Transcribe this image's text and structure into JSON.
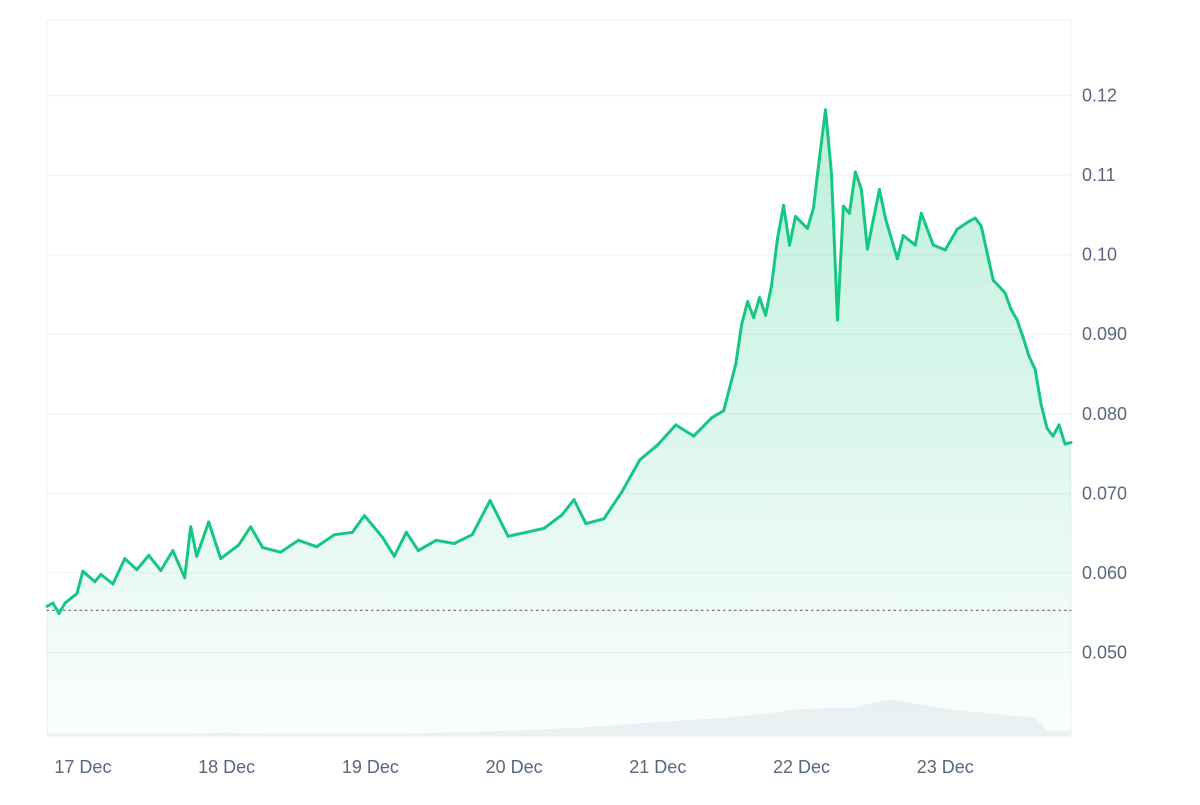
{
  "chart_data": {
    "type": "area",
    "y_tick_labels": [
      "0.12",
      "0.11",
      "0.10",
      "0.090",
      "0.080",
      "0.070",
      "0.060",
      "0.050"
    ],
    "x_tick_labels": [
      "17 Dec",
      "18 Dec",
      "19 Dec",
      "20 Dec",
      "21 Dec",
      "22 Dec",
      "23 Dec"
    ],
    "ylim": [
      0.0395,
      0.1295
    ],
    "xlim": [
      "2024-12-16 18:00",
      "2024-12-23 21:00"
    ],
    "reference_price": 0.0553,
    "colors": {
      "up": "#16c784",
      "down": "#ea3943",
      "volume": "#eff2f5",
      "grid": "#eef0f3"
    },
    "grid": true,
    "series": [
      {
        "values": [
          [
            "2024-12-16 18:00",
            0.0558
          ],
          [
            "2024-12-16 19:00",
            0.0562
          ],
          [
            "2024-12-16 20:00",
            0.0549
          ],
          [
            "2024-12-16 21:00",
            0.0562
          ],
          [
            "2024-12-16 23:00",
            0.0574
          ],
          [
            "2024-12-17 00:00",
            0.0602
          ],
          [
            "2024-12-17 02:00",
            0.0589
          ],
          [
            "2024-12-17 03:00",
            0.0598
          ],
          [
            "2024-12-17 05:00",
            0.0586
          ],
          [
            "2024-12-17 07:00",
            0.0618
          ],
          [
            "2024-12-17 09:00",
            0.0604
          ],
          [
            "2024-12-17 11:00",
            0.0622
          ],
          [
            "2024-12-17 13:00",
            0.0603
          ],
          [
            "2024-12-17 15:00",
            0.0628
          ],
          [
            "2024-12-17 17:00",
            0.0594
          ],
          [
            "2024-12-17 18:00",
            0.0658
          ],
          [
            "2024-12-17 19:00",
            0.0621
          ],
          [
            "2024-12-17 21:00",
            0.0664
          ],
          [
            "2024-12-17 23:00",
            0.0618
          ],
          [
            "2024-12-18 02:00",
            0.0635
          ],
          [
            "2024-12-18 04:00",
            0.0658
          ],
          [
            "2024-12-18 06:00",
            0.0632
          ],
          [
            "2024-12-18 09:00",
            0.0626
          ],
          [
            "2024-12-18 12:00",
            0.0641
          ],
          [
            "2024-12-18 15:00",
            0.0633
          ],
          [
            "2024-12-18 18:00",
            0.0648
          ],
          [
            "2024-12-18 21:00",
            0.0651
          ],
          [
            "2024-12-18 23:00",
            0.0672
          ],
          [
            "2024-12-19 02:00",
            0.0645
          ],
          [
            "2024-12-19 04:00",
            0.0621
          ],
          [
            "2024-12-19 06:00",
            0.0651
          ],
          [
            "2024-12-19 08:00",
            0.0628
          ],
          [
            "2024-12-19 11:00",
            0.0641
          ],
          [
            "2024-12-19 14:00",
            0.0637
          ],
          [
            "2024-12-19 17:00",
            0.0648
          ],
          [
            "2024-12-19 20:00",
            0.0691
          ],
          [
            "2024-12-19 23:00",
            0.0646
          ],
          [
            "2024-12-20 02:00",
            0.0651
          ],
          [
            "2024-12-20 05:00",
            0.0656
          ],
          [
            "2024-12-20 08:00",
            0.0673
          ],
          [
            "2024-12-20 10:00",
            0.0692
          ],
          [
            "2024-12-20 12:00",
            0.0662
          ],
          [
            "2024-12-20 15:00",
            0.0668
          ],
          [
            "2024-12-20 18:00",
            0.0702
          ],
          [
            "2024-12-20 21:00",
            0.0742
          ],
          [
            "2024-12-21 00:00",
            0.0761
          ],
          [
            "2024-12-21 03:00",
            0.0786
          ],
          [
            "2024-12-21 06:00",
            0.0772
          ],
          [
            "2024-12-21 09:00",
            0.0795
          ],
          [
            "2024-12-21 11:00",
            0.0804
          ],
          [
            "2024-12-21 13:00",
            0.0862
          ],
          [
            "2024-12-21 14:00",
            0.0912
          ],
          [
            "2024-12-21 15:00",
            0.0941
          ],
          [
            "2024-12-21 16:00",
            0.0921
          ],
          [
            "2024-12-21 17:00",
            0.0946
          ],
          [
            "2024-12-21 18:00",
            0.0924
          ],
          [
            "2024-12-21 19:00",
            0.0962
          ],
          [
            "2024-12-21 20:00",
            0.1021
          ],
          [
            "2024-12-21 21:00",
            0.1062
          ],
          [
            "2024-12-21 22:00",
            0.1012
          ],
          [
            "2024-12-21 23:00",
            0.1048
          ],
          [
            "2024-12-22 01:00",
            0.1033
          ],
          [
            "2024-12-22 02:00",
            0.1059
          ],
          [
            "2024-12-22 03:00",
            0.1122
          ],
          [
            "2024-12-22 04:00",
            0.1182
          ],
          [
            "2024-12-22 05:00",
            0.1102
          ],
          [
            "2024-12-22 06:00",
            0.0918
          ],
          [
            "2024-12-22 07:00",
            0.1061
          ],
          [
            "2024-12-22 08:00",
            0.1052
          ],
          [
            "2024-12-22 09:00",
            0.1104
          ],
          [
            "2024-12-22 10:00",
            0.1082
          ],
          [
            "2024-12-22 11:00",
            0.1007
          ],
          [
            "2024-12-22 13:00",
            0.1082
          ],
          [
            "2024-12-22 14:00",
            0.1046
          ],
          [
            "2024-12-22 16:00",
            0.0995
          ],
          [
            "2024-12-22 17:00",
            0.1024
          ],
          [
            "2024-12-22 19:00",
            0.1012
          ],
          [
            "2024-12-22 20:00",
            0.1052
          ],
          [
            "2024-12-22 22:00",
            0.1012
          ],
          [
            "2024-12-23 00:00",
            0.1006
          ],
          [
            "2024-12-23 02:00",
            0.1032
          ],
          [
            "2024-12-23 04:00",
            0.1042
          ],
          [
            "2024-12-23 05:00",
            0.1046
          ],
          [
            "2024-12-23 06:00",
            0.1036
          ],
          [
            "2024-12-23 08:00",
            0.0968
          ],
          [
            "2024-12-23 10:00",
            0.0952
          ],
          [
            "2024-12-23 11:00",
            0.0931
          ],
          [
            "2024-12-23 12:00",
            0.0918
          ],
          [
            "2024-12-23 13:00",
            0.0896
          ],
          [
            "2024-12-23 14:00",
            0.0872
          ],
          [
            "2024-12-23 15:00",
            0.0856
          ],
          [
            "2024-12-23 16:00",
            0.0812
          ],
          [
            "2024-12-23 17:00",
            0.0782
          ],
          [
            "2024-12-23 18:00",
            0.0772
          ],
          [
            "2024-12-23 19:00",
            0.0786
          ],
          [
            "2024-12-23 20:00",
            0.0762
          ],
          [
            "2024-12-23 21:00",
            0.0764
          ]
        ]
      }
    ],
    "volume": {
      "values": [
        [
          "2024-12-16 18:00",
          0.02
        ],
        [
          "2024-12-17 00:00",
          0.02
        ],
        [
          "2024-12-17 12:00",
          0.02
        ],
        [
          "2024-12-18 00:00",
          0.03
        ],
        [
          "2024-12-18 12:00",
          0.02
        ],
        [
          "2024-12-19 00:00",
          0.02
        ],
        [
          "2024-12-19 12:00",
          0.03
        ],
        [
          "2024-12-20 00:00",
          0.05
        ],
        [
          "2024-12-20 12:00",
          0.08
        ],
        [
          "2024-12-21 00:00",
          0.13
        ],
        [
          "2024-12-21 12:00",
          0.17
        ],
        [
          "2024-12-22 00:00",
          0.25
        ],
        [
          "2024-12-22 09:00",
          0.26
        ],
        [
          "2024-12-22 12:00",
          0.31
        ],
        [
          "2024-12-22 15:00",
          0.34
        ],
        [
          "2024-12-22 18:00",
          0.31
        ],
        [
          "2024-12-23 00:00",
          0.25
        ],
        [
          "2024-12-23 09:00",
          0.2
        ],
        [
          "2024-12-23 15:00",
          0.17
        ],
        [
          "2024-12-23 17:00",
          0.05
        ],
        [
          "2024-12-23 21:00",
          0.05
        ]
      ]
    }
  }
}
